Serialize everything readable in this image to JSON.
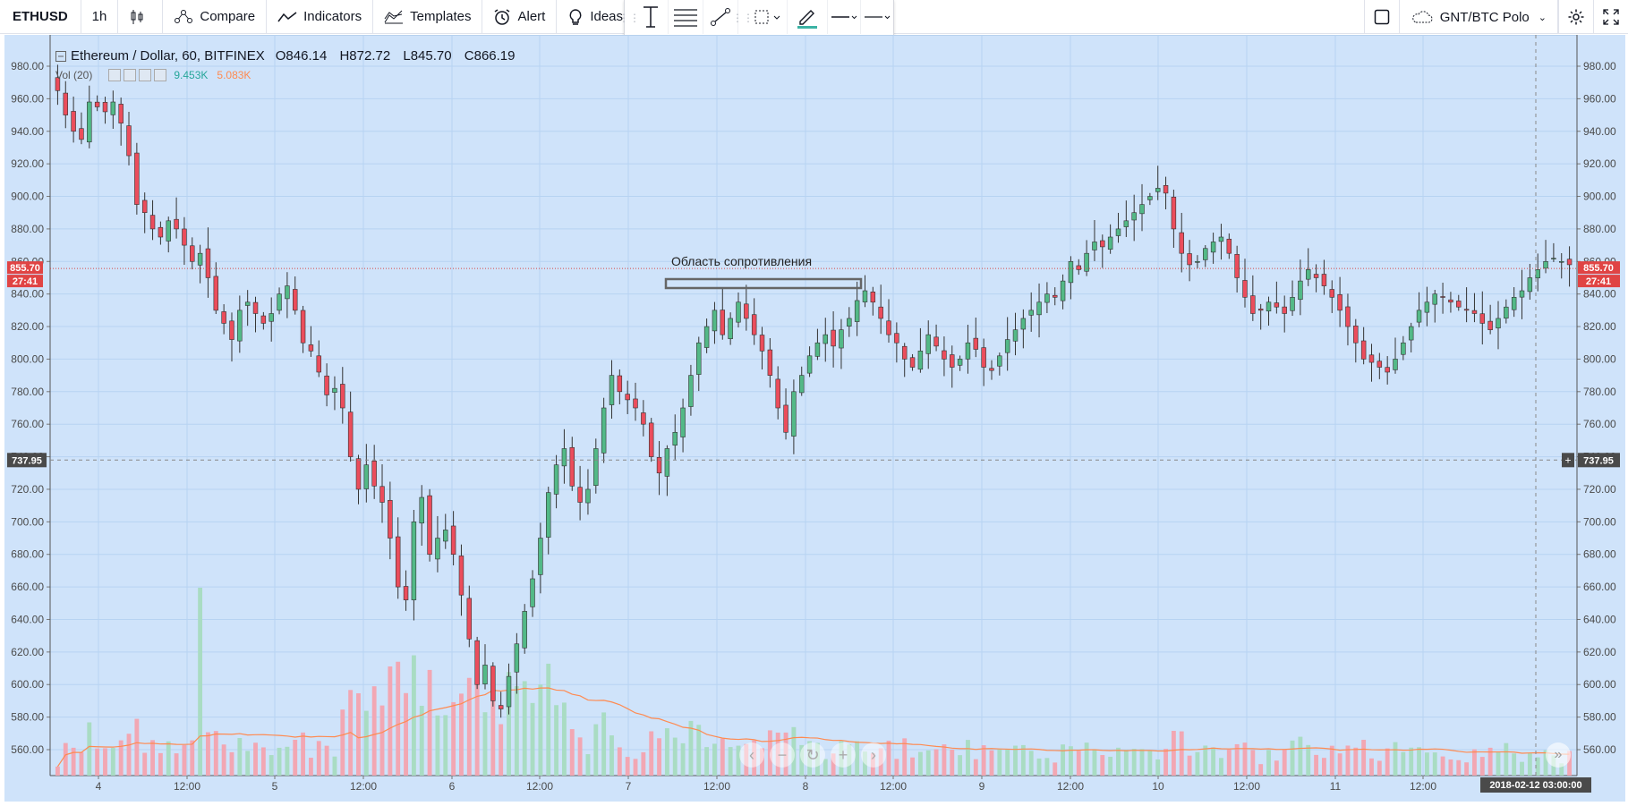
{
  "toolbar": {
    "symbol": "ETHUSD",
    "interval": "1h",
    "compare": "Compare",
    "indicators": "Indicators",
    "templates": "Templates",
    "alert": "Alert",
    "ideas": "Ideas",
    "layout_name": "GNT/BTC Polo"
  },
  "legend": {
    "title": "Ethereum / Dollar, 60, BITFINEX",
    "open": "O846.14",
    "high": "H872.72",
    "low": "L845.70",
    "close": "C866.19",
    "vol_label": "Vol (20)",
    "vol_value": "9.453K",
    "vol_ma": "5.083K"
  },
  "annotation": "Область сопротивления",
  "price_labels": {
    "last_price": "855.70",
    "countdown": "27:41",
    "crosshair_price": "737.95",
    "crosshair_time": "2018-02-12 03:00:00"
  },
  "colors": {
    "bg": "#cfe3fa",
    "up": "#53b987",
    "down": "#eb4d5c",
    "vol_up": "#a9dcc3",
    "vol_down": "#f2a7b3"
  },
  "chart_data": {
    "type": "candlestick",
    "title": "Ethereum / Dollar, 60, BITFINEX",
    "y_ticks": [
      "980.00",
      "960.00",
      "940.00",
      "920.00",
      "900.00",
      "880.00",
      "860.00",
      "840.00",
      "820.00",
      "800.00",
      "780.00",
      "760.00",
      "740.00",
      "720.00",
      "700.00",
      "680.00",
      "660.00",
      "640.00",
      "620.00",
      "600.00",
      "580.00",
      "560.00"
    ],
    "ylim": [
      549,
      988
    ],
    "x_ticks": [
      "4",
      "12:00",
      "5",
      "12:00",
      "6",
      "12:00",
      "7",
      "12:00",
      "8",
      "12:00",
      "9",
      "12:00",
      "10",
      "12:00",
      "11",
      "12:00"
    ],
    "close_series": [
      965,
      950,
      940,
      935,
      958,
      955,
      952,
      958,
      945,
      925,
      895,
      890,
      880,
      875,
      885,
      880,
      870,
      860,
      865,
      850,
      830,
      822,
      812,
      830,
      835,
      828,
      822,
      828,
      840,
      845,
      830,
      810,
      805,
      792,
      778,
      782,
      770,
      740,
      720,
      735,
      722,
      712,
      690,
      660,
      652,
      700,
      715,
      680,
      690,
      695,
      680,
      655,
      628,
      600,
      612,
      590,
      585,
      605,
      625,
      645,
      665,
      690,
      718,
      735,
      745,
      722,
      712,
      720,
      745,
      770,
      790,
      780,
      775,
      770,
      760,
      740,
      730,
      745,
      755,
      770,
      790,
      810,
      820,
      830,
      815,
      825,
      835,
      825,
      815,
      805,
      790,
      770,
      755,
      780,
      790,
      802,
      810,
      815,
      808,
      818,
      825,
      836,
      842,
      835,
      825,
      815,
      810,
      800,
      795,
      805,
      815,
      808,
      800,
      795,
      800,
      810,
      806,
      795,
      793,
      802,
      812,
      818,
      825,
      830,
      835,
      840,
      838,
      848,
      860,
      855,
      865,
      872,
      869,
      875,
      880,
      885,
      890,
      895,
      900,
      905,
      902,
      880,
      865,
      858,
      860,
      868,
      872,
      875,
      865,
      850,
      838,
      828,
      830,
      835,
      832,
      828,
      838,
      848,
      855,
      850,
      845,
      838,
      830,
      820,
      810,
      800,
      798,
      795,
      792,
      800,
      810,
      820,
      830,
      835,
      840,
      838,
      835,
      832,
      830,
      828,
      822,
      818,
      825,
      832,
      838,
      842,
      850,
      855,
      860,
      862,
      860,
      858
    ]
  }
}
